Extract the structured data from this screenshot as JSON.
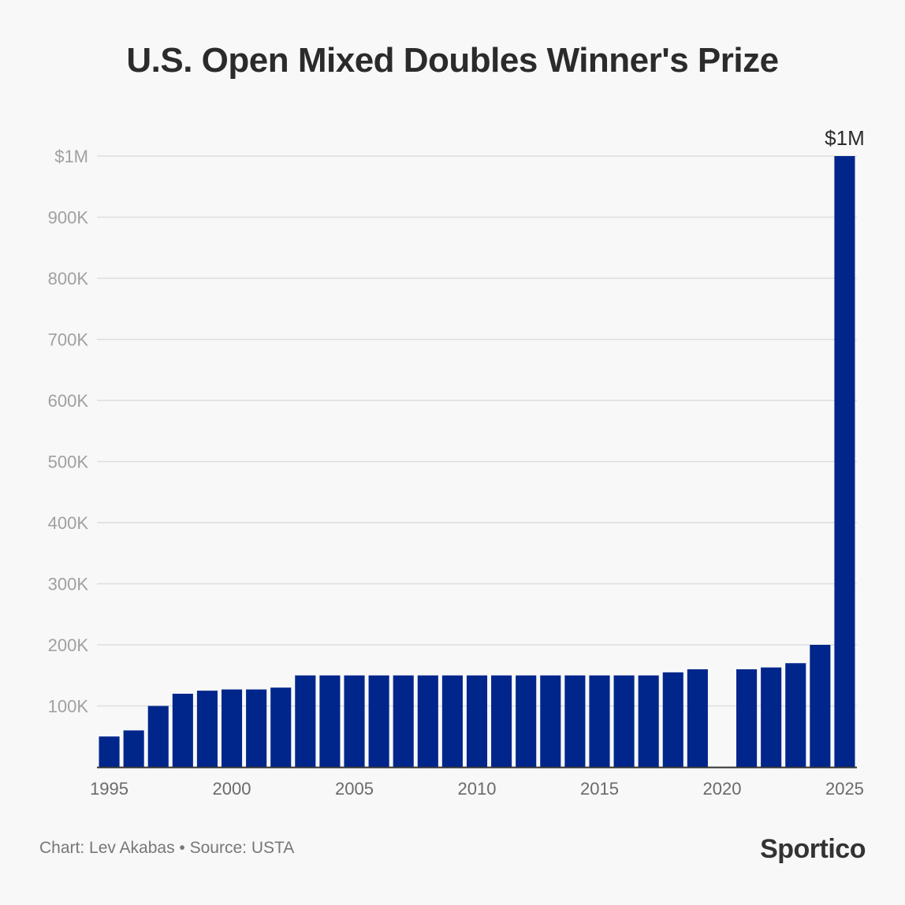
{
  "title": "U.S. Open Mixed Doubles Winner's Prize",
  "footer": {
    "credit": "Chart: Lev Akabas • Source: USTA",
    "logo": "Sportico"
  },
  "colors": {
    "bar": "#00268c",
    "grid": "#dddddd",
    "axis_text": "#a0a0a0",
    "x_text": "#6a6a6a",
    "annotation": "#2b2b2b",
    "baseline": "#333333"
  },
  "chart_data": {
    "type": "bar",
    "title": "U.S. Open Mixed Doubles Winner's Prize",
    "xlabel": "",
    "ylabel": "",
    "ylim": [
      0,
      1000000
    ],
    "categories": [
      1995,
      1996,
      1997,
      1998,
      1999,
      2000,
      2001,
      2002,
      2003,
      2004,
      2005,
      2006,
      2007,
      2008,
      2009,
      2010,
      2011,
      2012,
      2013,
      2014,
      2015,
      2016,
      2017,
      2018,
      2019,
      2020,
      2021,
      2022,
      2023,
      2024,
      2025
    ],
    "values": [
      50000,
      60000,
      100000,
      120000,
      125000,
      127000,
      127000,
      130000,
      150000,
      150000,
      150000,
      150000,
      150000,
      150000,
      150000,
      150000,
      150000,
      150000,
      150000,
      150000,
      150000,
      150000,
      150000,
      155000,
      160000,
      0,
      160000,
      163000,
      170000,
      200000,
      1000000
    ],
    "yticks": [
      {
        "value": 100000,
        "label": "100K"
      },
      {
        "value": 200000,
        "label": "200K"
      },
      {
        "value": 300000,
        "label": "300K"
      },
      {
        "value": 400000,
        "label": "400K"
      },
      {
        "value": 500000,
        "label": "500K"
      },
      {
        "value": 600000,
        "label": "600K"
      },
      {
        "value": 700000,
        "label": "700K"
      },
      {
        "value": 800000,
        "label": "800K"
      },
      {
        "value": 900000,
        "label": "900K"
      },
      {
        "value": 1000000,
        "label": "$1M"
      }
    ],
    "xticks": [
      {
        "value": 1995,
        "label": "1995"
      },
      {
        "value": 2000,
        "label": "2000"
      },
      {
        "value": 2005,
        "label": "2005"
      },
      {
        "value": 2010,
        "label": "2010"
      },
      {
        "value": 2015,
        "label": "2015"
      },
      {
        "value": 2020,
        "label": "2020"
      },
      {
        "value": 2025,
        "label": "2025"
      }
    ],
    "annotations": [
      {
        "category": 2025,
        "text": "$1M"
      }
    ],
    "grid": true
  }
}
